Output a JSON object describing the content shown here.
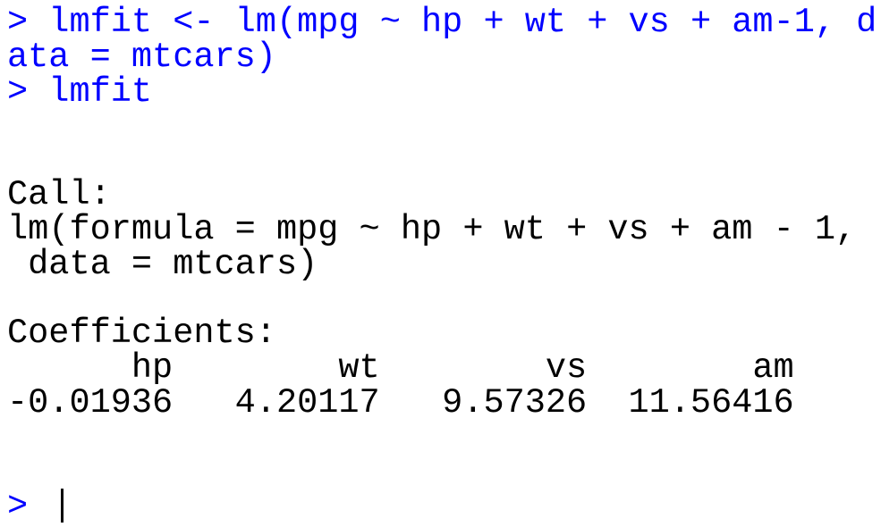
{
  "console": {
    "input": [
      "> lmfit <- lm(mpg ~ hp + wt + vs + am-1, d",
      "ata = mtcars)",
      "> lmfit"
    ],
    "call": {
      "heading": "Call:",
      "lines": [
        "lm(formula = mpg ~ hp + wt + vs + am - 1,",
        " data = mtcars)"
      ]
    },
    "coefficients": {
      "heading": "Coefficients:",
      "names": [
        "hp",
        "wt",
        "vs",
        "am"
      ],
      "values": [
        "-0.01936",
        "4.20117",
        "9.57326",
        "11.56416"
      ]
    },
    "prompt": ">"
  }
}
